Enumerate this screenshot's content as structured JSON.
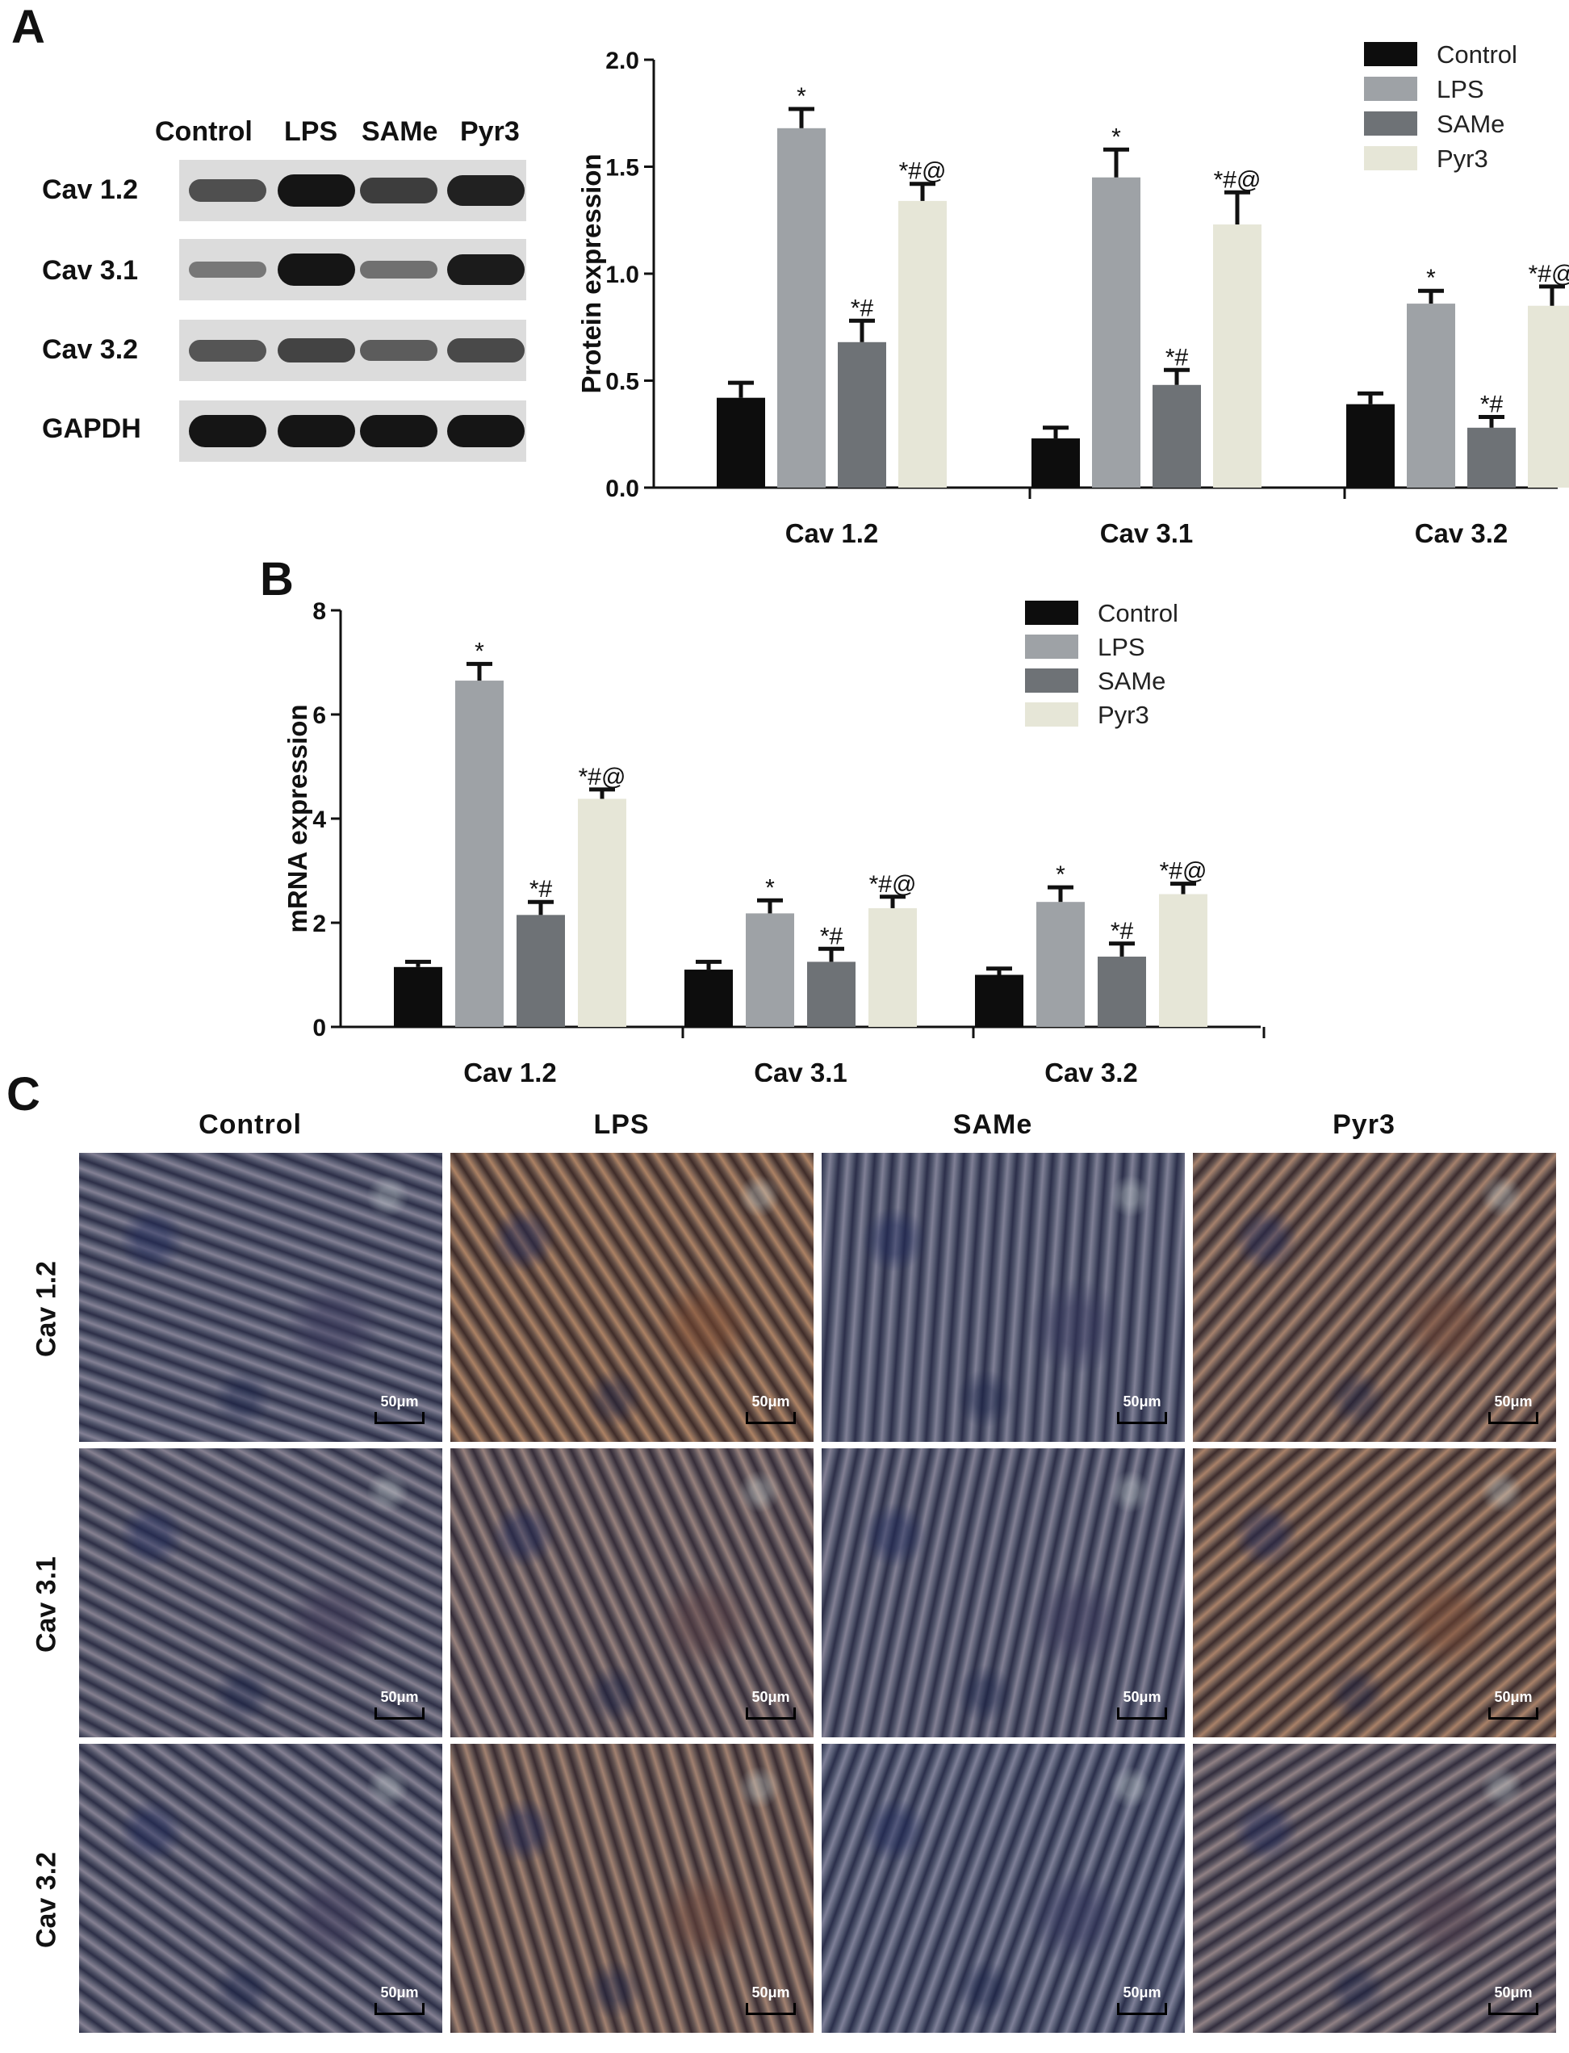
{
  "panels": {
    "a": "A",
    "b": "B",
    "c": "C"
  },
  "western_blot": {
    "lanes": [
      "Control",
      "LPS",
      "SAMe",
      "Pyr3"
    ],
    "rows": [
      {
        "label": "Cav 1.2",
        "intensity": [
          0.55,
          1.0,
          0.7,
          0.9
        ]
      },
      {
        "label": "Cav 3.1",
        "intensity": [
          0.25,
          1.0,
          0.3,
          0.95
        ]
      },
      {
        "label": "Cav 3.2",
        "intensity": [
          0.5,
          0.65,
          0.45,
          0.6
        ]
      },
      {
        "label": "GAPDH",
        "intensity": [
          1.0,
          1.0,
          1.0,
          1.0
        ]
      }
    ]
  },
  "colors": {
    "Control": "#0d0d0d",
    "LPS": "#9ea2a6",
    "SAMe": "#6e7276",
    "Pyr3": "#e6e6d7"
  },
  "chart_data": [
    {
      "type": "bar",
      "ylabel": "Protein expression",
      "categories": [
        "Cav 1.2",
        "Cav 3.1",
        "Cav 3.2"
      ],
      "ylim": [
        0,
        2.0
      ],
      "yticks": [
        "0.0",
        "0.5",
        "1.0",
        "1.5",
        "2.0"
      ],
      "legend": "top-right",
      "series": [
        {
          "name": "Control",
          "values": [
            0.42,
            0.23,
            0.39
          ],
          "errors": [
            0.07,
            0.05,
            0.05
          ],
          "marks": [
            "",
            "",
            ""
          ]
        },
        {
          "name": "LPS",
          "values": [
            1.68,
            1.45,
            0.86
          ],
          "errors": [
            0.09,
            0.13,
            0.06
          ],
          "marks": [
            "*",
            "*",
            "*"
          ]
        },
        {
          "name": "SAMe",
          "values": [
            0.68,
            0.48,
            0.28
          ],
          "errors": [
            0.1,
            0.07,
            0.05
          ],
          "marks": [
            "*#",
            "*#",
            "*#"
          ]
        },
        {
          "name": "Pyr3",
          "values": [
            1.34,
            1.23,
            0.85
          ],
          "errors": [
            0.08,
            0.15,
            0.09
          ],
          "marks": [
            "*#@",
            "*#@",
            "*#@"
          ]
        }
      ]
    },
    {
      "type": "bar",
      "ylabel": "mRNA expression",
      "categories": [
        "Cav 1.2",
        "Cav 3.1",
        "Cav 3.2"
      ],
      "ylim": [
        0,
        8
      ],
      "yticks": [
        "0",
        "2",
        "4",
        "6",
        "8"
      ],
      "legend": "top-right",
      "series": [
        {
          "name": "Control",
          "values": [
            1.15,
            1.1,
            1.0
          ],
          "errors": [
            0.1,
            0.15,
            0.12
          ],
          "marks": [
            "",
            "",
            ""
          ]
        },
        {
          "name": "LPS",
          "values": [
            6.65,
            2.18,
            2.4
          ],
          "errors": [
            0.32,
            0.25,
            0.28
          ],
          "marks": [
            "*",
            "*",
            "*"
          ]
        },
        {
          "name": "SAMe",
          "values": [
            2.15,
            1.25,
            1.35
          ],
          "errors": [
            0.25,
            0.25,
            0.25
          ],
          "marks": [
            "*#",
            "*#",
            "*#"
          ]
        },
        {
          "name": "Pyr3",
          "values": [
            4.38,
            2.28,
            2.55
          ],
          "errors": [
            0.18,
            0.22,
            0.2
          ],
          "marks": [
            "*#@",
            "*#@",
            "*#@"
          ]
        }
      ]
    }
  ],
  "ihc": {
    "columns": [
      "Control",
      "LPS",
      "SAMe",
      "Pyr3"
    ],
    "rows": [
      "Cav 1.2",
      "Cav 3.1",
      "Cav 3.2"
    ],
    "scale_label": "50μm",
    "stain_level": [
      [
        0.15,
        0.75,
        0.12,
        0.65
      ],
      [
        0.2,
        0.45,
        0.15,
        0.7
      ],
      [
        0.18,
        0.6,
        0.1,
        0.35
      ]
    ]
  }
}
